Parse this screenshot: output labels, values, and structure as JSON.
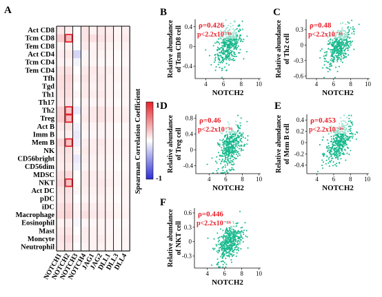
{
  "panel_letters": {
    "A": "A",
    "B": "B",
    "C": "C",
    "D": "D",
    "E": "E",
    "F": "F"
  },
  "colorbar": {
    "title": "Spearman Correlation Coefficient",
    "max_label": "1",
    "min_label": "-1",
    "colors": {
      "high": "#e8202a",
      "mid": "#ffffff",
      "low": "#2b2bd6"
    }
  },
  "colors": {
    "points": "#19b98e",
    "annotation": "#e8202a",
    "highlight": "#e8202a"
  },
  "chart_data": [
    {
      "type": "heatmap",
      "panel": "A",
      "rows": [
        "Act CD8",
        "Tcm CD8",
        "Tem CD8",
        "Act CD4",
        "Tcm CD4",
        "Tem CD4",
        "Tfh",
        "Tgd",
        "Th1",
        "Th17",
        "Th2",
        "Treg",
        "Act B",
        "Imm B",
        "Mem B",
        "NK",
        "CD56bright",
        "CD56dim",
        "MDSC",
        "NKT",
        "Act DC",
        "pDC",
        "iDC",
        "Macrophage",
        "Eosinophil",
        "Mast",
        "Moncyte",
        "Neutrophil"
      ],
      "columns": [
        "NOTCH1",
        "NOTCH2",
        "NOTCH3",
        "NOTCH4",
        "JAG1",
        "JAG2",
        "DLL1",
        "DLL3",
        "DLL4"
      ],
      "values": [
        [
          0.1,
          0.08,
          0.0,
          0.12,
          0.06,
          0.1,
          0.08,
          0.05,
          0.07
        ],
        [
          0.22,
          0.3,
          0.0,
          0.12,
          0.14,
          0.12,
          0.1,
          0.06,
          0.09
        ],
        [
          0.05,
          0.06,
          0.0,
          0.1,
          0.06,
          0.08,
          0.06,
          0.04,
          0.06
        ],
        [
          0.08,
          0.1,
          -0.2,
          0.04,
          0.06,
          0.05,
          0.04,
          0.02,
          0.04
        ],
        [
          0.06,
          0.06,
          -0.05,
          0.05,
          0.05,
          0.03,
          0.03,
          0.02,
          0.03
        ],
        [
          0.12,
          0.14,
          0.0,
          0.1,
          0.1,
          0.08,
          0.07,
          0.04,
          0.06
        ],
        [
          0.15,
          0.18,
          0.04,
          0.12,
          0.08,
          0.1,
          0.06,
          0.05,
          0.06
        ],
        [
          0.14,
          0.16,
          0.0,
          0.1,
          0.06,
          0.08,
          0.06,
          0.03,
          0.05
        ],
        [
          0.12,
          0.15,
          0.04,
          0.1,
          0.08,
          0.09,
          0.06,
          0.04,
          0.05
        ],
        [
          0.1,
          0.12,
          0.0,
          0.06,
          0.04,
          0.06,
          0.04,
          0.02,
          0.04
        ],
        [
          0.2,
          0.26,
          -0.1,
          0.08,
          0.1,
          0.12,
          0.08,
          0.05,
          0.07
        ],
        [
          0.22,
          0.3,
          0.0,
          0.1,
          0.1,
          0.12,
          0.08,
          0.06,
          0.08
        ],
        [
          0.1,
          0.12,
          -0.06,
          0.06,
          0.05,
          0.06,
          0.04,
          0.02,
          0.03
        ],
        [
          0.06,
          0.08,
          -0.1,
          0.04,
          0.04,
          0.05,
          0.04,
          0.02,
          0.03
        ],
        [
          0.18,
          0.28,
          -0.08,
          0.08,
          0.08,
          0.1,
          0.06,
          0.04,
          0.06
        ],
        [
          0.12,
          0.14,
          0.04,
          0.1,
          0.08,
          0.08,
          0.06,
          0.04,
          0.05
        ],
        [
          0.1,
          0.12,
          -0.1,
          0.08,
          0.06,
          0.06,
          0.04,
          0.03,
          0.04
        ],
        [
          0.08,
          0.1,
          -0.06,
          0.06,
          0.05,
          0.05,
          0.04,
          0.02,
          0.03
        ],
        [
          0.14,
          0.18,
          0.0,
          0.1,
          0.08,
          0.08,
          0.06,
          0.04,
          0.05
        ],
        [
          0.18,
          0.28,
          0.0,
          0.1,
          0.08,
          0.1,
          0.07,
          0.04,
          0.06
        ],
        [
          0.12,
          0.14,
          0.04,
          0.08,
          0.06,
          0.08,
          0.05,
          0.03,
          0.05
        ],
        [
          0.1,
          0.12,
          0.0,
          0.06,
          0.04,
          0.06,
          0.04,
          0.02,
          0.04
        ],
        [
          0.14,
          0.18,
          0.04,
          0.1,
          0.08,
          0.08,
          0.06,
          0.04,
          0.05
        ],
        [
          0.16,
          0.2,
          0.06,
          0.14,
          0.1,
          0.1,
          0.08,
          0.05,
          0.06
        ],
        [
          0.06,
          0.08,
          -0.04,
          0.04,
          0.04,
          0.05,
          0.04,
          0.02,
          0.03
        ],
        [
          0.1,
          0.12,
          0.0,
          0.08,
          0.06,
          0.06,
          0.04,
          0.03,
          0.04
        ],
        [
          0.12,
          0.16,
          0.04,
          0.08,
          0.06,
          0.08,
          0.05,
          0.03,
          0.05
        ],
        [
          0.1,
          0.12,
          0.0,
          0.06,
          0.06,
          0.06,
          0.04,
          0.03,
          0.04
        ]
      ],
      "highlighted": [
        [
          "Tcm CD8",
          "NOTCH2"
        ],
        [
          "Th2",
          "NOTCH2"
        ],
        [
          "Treg",
          "NOTCH2"
        ],
        [
          "Mem B",
          "NOTCH2"
        ],
        [
          "NKT",
          "NOTCH2"
        ]
      ],
      "color_range": [
        -1,
        1
      ]
    },
    {
      "type": "scatter",
      "panel": "B",
      "xlabel": "NOTCH2",
      "ylabel": "Relative abundance of Tcm CD8 cell",
      "rho_text": "ρ=0.426",
      "p_text": "p<2.2x10⁻¹⁶",
      "xlim": [
        2.8,
        10.2
      ],
      "ylim": [
        -0.65,
        0.55
      ],
      "xticks": [
        4,
        6,
        8,
        10
      ],
      "yticks": [
        -0.4,
        0,
        0.4
      ],
      "cloud": {
        "n": 420,
        "x_center": 6.6,
        "x_sd": 0.75,
        "y_center": 0.02,
        "y_sd": 0.2,
        "rho": 0.43
      }
    },
    {
      "type": "scatter",
      "panel": "C",
      "xlabel": "NOTCH2",
      "ylabel": "Relative abundance of Th2 cell",
      "rho_text": "ρ=0.48",
      "p_text": "p<2.2x10⁻¹⁶",
      "xlim": [
        2.8,
        10.2
      ],
      "ylim": [
        -0.65,
        0.5
      ],
      "xticks": [
        4,
        6,
        8,
        10
      ],
      "yticks": [
        -0.6,
        -0.3,
        0,
        0.3
      ],
      "cloud": {
        "n": 420,
        "x_center": 6.6,
        "x_sd": 0.75,
        "y_center": -0.02,
        "y_sd": 0.19,
        "rho": 0.48
      }
    },
    {
      "type": "scatter",
      "panel": "D",
      "xlabel": "NOTCH2",
      "ylabel": "Relative abundance of Treg cell",
      "rho_text": "ρ=0.46",
      "p_text": "p<2.2x10⁻¹⁶",
      "xlim": [
        2.4,
        10.2
      ],
      "ylim": [
        -0.6,
        0.9
      ],
      "xticks": [
        4,
        6,
        8,
        10
      ],
      "yticks": [
        -0.4,
        0,
        0.4,
        0.8
      ],
      "cloud": {
        "n": 420,
        "x_center": 6.6,
        "x_sd": 0.75,
        "y_center": 0.08,
        "y_sd": 0.28,
        "rho": 0.46
      }
    },
    {
      "type": "scatter",
      "panel": "E",
      "xlabel": "NOTCH2",
      "ylabel": "Relative abundance of Mem B cell",
      "rho_text": "ρ=0.453",
      "p_text": "p<2.2x10⁻¹⁶",
      "xlim": [
        2.8,
        10.2
      ],
      "ylim": [
        -0.55,
        0.5
      ],
      "xticks": [
        4,
        6,
        8,
        10
      ],
      "yticks": [
        -0.4,
        -0.2,
        0,
        0.2,
        0.4
      ],
      "cloud": {
        "n": 420,
        "x_center": 6.6,
        "x_sd": 0.75,
        "y_center": 0.0,
        "y_sd": 0.18,
        "rho": 0.45
      }
    },
    {
      "type": "scatter",
      "panel": "F",
      "xlabel": "NOTCH2",
      "ylabel": "Relative abundance of NKT cell",
      "rho_text": "ρ=0.446",
      "p_text": "p<2.2x10⁻¹⁶",
      "xlim": [
        2.5,
        10.2
      ],
      "ylim": [
        -0.55,
        0.7
      ],
      "xticks": [
        4,
        6,
        8,
        10
      ],
      "yticks": [
        -0.3,
        0,
        0.3,
        0.6
      ],
      "cloud": {
        "n": 420,
        "x_center": 6.6,
        "x_sd": 0.75,
        "y_center": 0.0,
        "y_sd": 0.2,
        "rho": 0.45
      }
    }
  ]
}
